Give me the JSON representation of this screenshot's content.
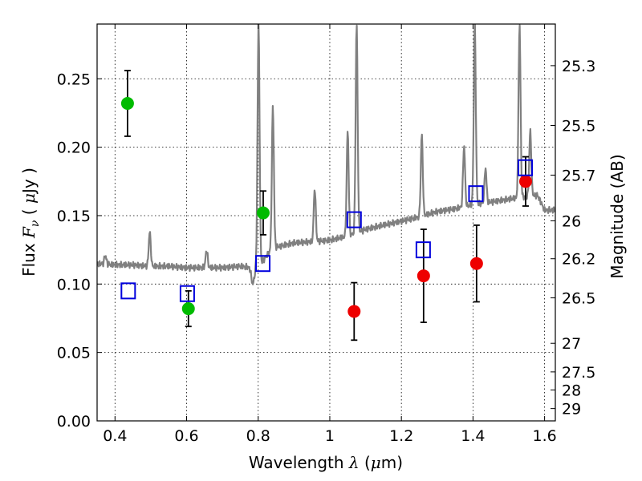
{
  "chart_data": {
    "type": "scatter",
    "title": "",
    "xlabel": {
      "prefix": "Wavelength ",
      "symbol": "λ",
      "unit_open": " (",
      "mu": "μ",
      "unit_rest": "m)"
    },
    "ylabel": {
      "prefix": "Flux ",
      "symbol": "F",
      "sub": "ν",
      "unit_open": " ( ",
      "mu": "μ",
      "unit_rest": "Jy )"
    },
    "ylabel_right": "Magnitude (AB)",
    "xlim": [
      0.35,
      1.63
    ],
    "ylim": [
      0.0,
      0.29
    ],
    "x_ticks": [
      {
        "value": 0.4,
        "label": "0.4"
      },
      {
        "value": 0.6,
        "label": "0.6"
      },
      {
        "value": 0.8,
        "label": "0.8"
      },
      {
        "value": 1.0,
        "label": "1"
      },
      {
        "value": 1.2,
        "label": "1.2"
      },
      {
        "value": 1.4,
        "label": "1.4"
      },
      {
        "value": 1.6,
        "label": "1.6"
      }
    ],
    "y_ticks": [
      {
        "value": 0.0,
        "label": "0.00"
      },
      {
        "value": 0.05,
        "label": "0.05"
      },
      {
        "value": 0.1,
        "label": "0.10"
      },
      {
        "value": 0.15,
        "label": "0.15"
      },
      {
        "value": 0.2,
        "label": "0.20"
      },
      {
        "value": 0.25,
        "label": "0.25"
      }
    ],
    "right_ticks": [
      {
        "label": "25.3",
        "flux": 0.2596
      },
      {
        "label": "25.5",
        "flux": 0.2159
      },
      {
        "label": "25.7",
        "flux": 0.1796
      },
      {
        "label": "26",
        "flux": 0.1462
      },
      {
        "label": "26.2",
        "flux": 0.1185
      },
      {
        "label": "26.5",
        "flux": 0.0899
      },
      {
        "label": "27",
        "flux": 0.0567
      },
      {
        "label": "27.5",
        "flux": 0.0358
      },
      {
        "label": "28",
        "flux": 0.0226
      },
      {
        "label": "29",
        "flux": 0.009
      }
    ],
    "grid": true,
    "colors": {
      "spectrum": "#808080",
      "green": "#00bb00",
      "red": "#ee0000",
      "model": "#0000dd",
      "error": "#000000"
    },
    "spectrum_continuum": [
      [
        0.35,
        0.115
      ],
      [
        0.4,
        0.114
      ],
      [
        0.45,
        0.114
      ],
      [
        0.5,
        0.113
      ],
      [
        0.55,
        0.113
      ],
      [
        0.6,
        0.112
      ],
      [
        0.65,
        0.112
      ],
      [
        0.7,
        0.112
      ],
      [
        0.75,
        0.113
      ],
      [
        0.78,
        0.112
      ],
      [
        0.8,
        0.112
      ],
      [
        0.83,
        0.123
      ],
      [
        0.85,
        0.127
      ],
      [
        0.9,
        0.13
      ],
      [
        0.95,
        0.131
      ],
      [
        1.0,
        0.132
      ],
      [
        1.05,
        0.135
      ],
      [
        1.1,
        0.14
      ],
      [
        1.15,
        0.143
      ],
      [
        1.2,
        0.146
      ],
      [
        1.25,
        0.149
      ],
      [
        1.3,
        0.153
      ],
      [
        1.35,
        0.155
      ],
      [
        1.4,
        0.158
      ],
      [
        1.45,
        0.16
      ],
      [
        1.5,
        0.162
      ],
      [
        1.55,
        0.164
      ],
      [
        1.58,
        0.165
      ],
      [
        1.6,
        0.154
      ],
      [
        1.63,
        0.154
      ]
    ],
    "spectrum_lines": [
      {
        "x": 0.373,
        "peak": 0.121
      },
      {
        "x": 0.497,
        "peak": 0.138
      },
      {
        "x": 0.656,
        "peak": 0.125
      },
      {
        "x": 0.801,
        "peak": 0.29
      },
      {
        "x": 0.841,
        "peak": 0.229
      },
      {
        "x": 0.958,
        "peak": 0.17
      },
      {
        "x": 1.05,
        "peak": 0.212
      },
      {
        "x": 1.075,
        "peak": 0.29
      },
      {
        "x": 1.257,
        "peak": 0.209
      },
      {
        "x": 1.375,
        "peak": 0.201
      },
      {
        "x": 1.405,
        "peak": 0.29
      },
      {
        "x": 1.435,
        "peak": 0.185
      },
      {
        "x": 1.53,
        "peak": 0.29
      },
      {
        "x": 1.56,
        "peak": 0.212
      }
    ],
    "series": [
      {
        "marker": "circle",
        "color": "green",
        "points": [
          {
            "x": 0.435,
            "y": 0.232,
            "err": 0.024
          },
          {
            "x": 0.605,
            "y": 0.082,
            "err": 0.013
          },
          {
            "x": 0.814,
            "y": 0.152,
            "err": 0.016
          }
        ]
      },
      {
        "marker": "circle",
        "color": "red",
        "points": [
          {
            "x": 1.068,
            "y": 0.08,
            "err": 0.021
          },
          {
            "x": 1.262,
            "y": 0.106,
            "err": 0.034
          },
          {
            "x": 1.41,
            "y": 0.115,
            "err": 0.028
          },
          {
            "x": 1.547,
            "y": 0.175,
            "err": 0.018
          }
        ]
      },
      {
        "marker": "open-square",
        "color": "model",
        "points": [
          {
            "x": 0.437,
            "y": 0.095
          },
          {
            "x": 0.602,
            "y": 0.093
          },
          {
            "x": 0.813,
            "y": 0.115
          },
          {
            "x": 1.068,
            "y": 0.147
          },
          {
            "x": 1.261,
            "y": 0.125
          },
          {
            "x": 1.408,
            "y": 0.166
          },
          {
            "x": 1.546,
            "y": 0.185
          }
        ]
      }
    ]
  }
}
